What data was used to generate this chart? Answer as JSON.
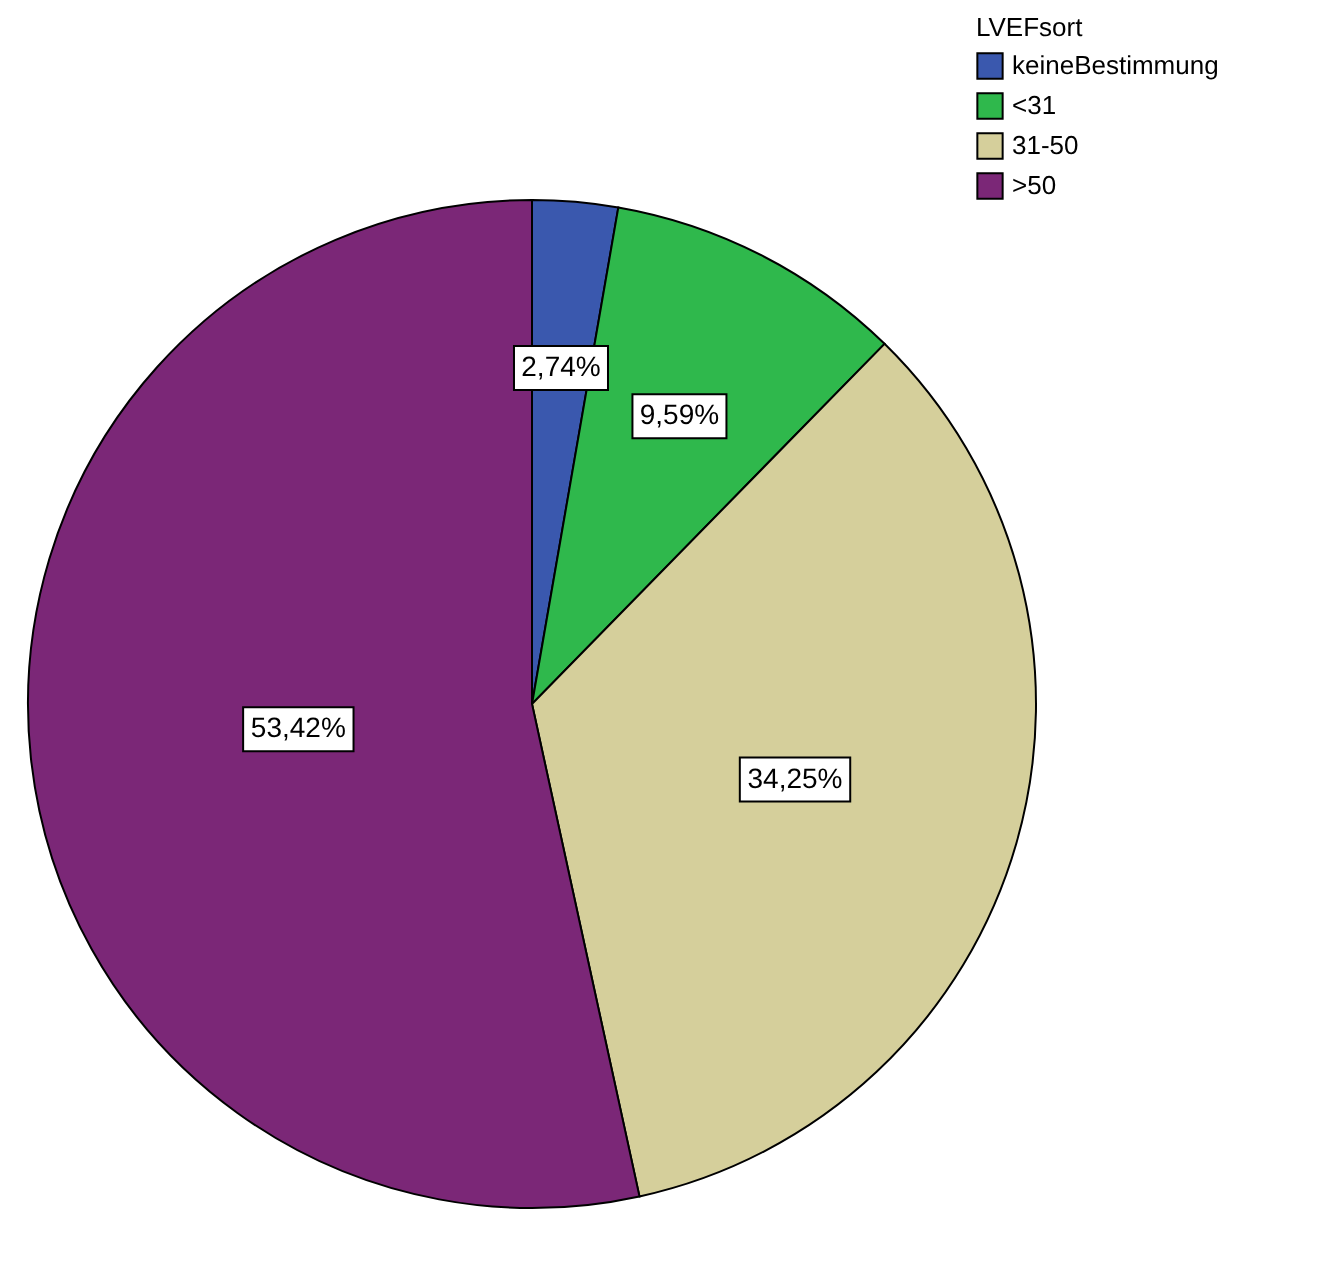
{
  "chart_data": {
    "type": "pie",
    "legend_title": "LVEFsort",
    "legend": "top right",
    "categories": [
      "keineBestimmung",
      "<31",
      "31-50",
      ">50"
    ],
    "values": [
      2.74,
      9.59,
      34.25,
      53.42
    ],
    "colors": [
      "#3a58ae",
      "#2fb84c",
      "#d5cf9b",
      "#7b2777"
    ],
    "value_labels": [
      "2,74%",
      "9,59%",
      "34,25%",
      "53,42%"
    ]
  }
}
